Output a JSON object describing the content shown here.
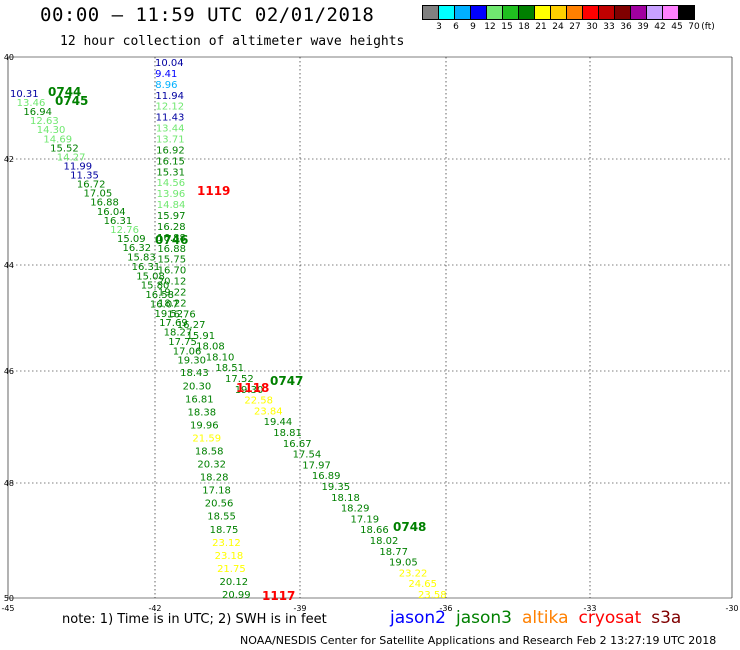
{
  "header": {
    "title": "00:00 – 11:59 UTC 02/01/2018",
    "subtitle": "12 hour collection of altimeter wave heights"
  },
  "legend": {
    "colors": [
      "#808080",
      "#00ffff",
      "#00b0ff",
      "#0000ff",
      "#70e870",
      "#20c020",
      "#008000",
      "#ffff00",
      "#ffd000",
      "#ff8000",
      "#ff0000",
      "#c00000",
      "#800000",
      "#a000a0",
      "#c8a0ff",
      "#ff80ff",
      "#000000"
    ],
    "labels": [
      "3",
      "6",
      "9",
      "12",
      "15",
      "18",
      "21",
      "24",
      "27",
      "30",
      "33",
      "36",
      "39",
      "42",
      "45",
      "70",
      "(ft)"
    ]
  },
  "axes": {
    "lat_labels": [
      "40",
      "42",
      "44",
      "46",
      "48",
      "50"
    ],
    "lon_labels": [
      "-45",
      "-42",
      "-39",
      "-36",
      "-33",
      "-30"
    ]
  },
  "tracks": [
    {
      "points": [
        {
          "v": "10.31",
          "c": "#0000a0"
        },
        {
          "v": "13.46",
          "c": "#70e870"
        },
        {
          "v": "16.94",
          "c": "#008000"
        },
        {
          "v": "12.63",
          "c": "#70e870"
        },
        {
          "v": "14.30",
          "c": "#70e870"
        },
        {
          "v": "14.69",
          "c": "#70e870"
        },
        {
          "v": "15.52",
          "c": "#008000"
        },
        {
          "v": "14.27",
          "c": "#70e870"
        },
        {
          "v": "11.99",
          "c": "#0000a0"
        },
        {
          "v": "11.35",
          "c": "#0000a0"
        },
        {
          "v": "16.72",
          "c": "#008000"
        },
        {
          "v": "17.05",
          "c": "#008000"
        },
        {
          "v": "16.88",
          "c": "#008000"
        },
        {
          "v": "16.04",
          "c": "#008000"
        },
        {
          "v": "16.31",
          "c": "#008000"
        },
        {
          "v": "12.76",
          "c": "#70e870"
        },
        {
          "v": "15.09",
          "c": "#008000"
        },
        {
          "v": "16.32",
          "c": "#008000"
        },
        {
          "v": "15.83",
          "c": "#008000"
        },
        {
          "v": "16.31",
          "c": "#008000"
        },
        {
          "v": "15.08",
          "c": "#008000"
        },
        {
          "v": "15.80",
          "c": "#008000"
        },
        {
          "v": "16.58",
          "c": "#008000"
        },
        {
          "v": "16.07",
          "c": "#008000"
        },
        {
          "v": "19.52",
          "c": "#008000"
        },
        {
          "v": "17.69",
          "c": "#008000"
        },
        {
          "v": "18.27",
          "c": "#008000"
        },
        {
          "v": "17.75",
          "c": "#008000"
        },
        {
          "v": "17.06",
          "c": "#008000"
        },
        {
          "v": "19.30",
          "c": "#008000"
        },
        {
          "v": "18.43",
          "c": "#008000"
        },
        {
          "v": "20.30",
          "c": "#008000"
        },
        {
          "v": "16.81",
          "c": "#008000"
        },
        {
          "v": "18.38",
          "c": "#008000"
        },
        {
          "v": "19.96",
          "c": "#008000"
        },
        {
          "v": "21.59",
          "c": "#ffff00"
        },
        {
          "v": "18.58",
          "c": "#008000"
        },
        {
          "v": "20.32",
          "c": "#008000"
        },
        {
          "v": "18.28",
          "c": "#008000"
        },
        {
          "v": "17.18",
          "c": "#008000"
        },
        {
          "v": "20.56",
          "c": "#008000"
        },
        {
          "v": "18.55",
          "c": "#008000"
        },
        {
          "v": "18.75",
          "c": "#008000"
        },
        {
          "v": "23.12",
          "c": "#ffff00"
        },
        {
          "v": "23.18",
          "c": "#ffff00"
        },
        {
          "v": "21.75",
          "c": "#ffff00"
        },
        {
          "v": "20.12",
          "c": "#008000"
        },
        {
          "v": "20.99",
          "c": "#008000"
        }
      ]
    },
    {
      "points": [
        {
          "v": "10.04",
          "c": "#0000a0"
        },
        {
          "v": "9.41",
          "c": "#0000ff"
        },
        {
          "v": "8.96",
          "c": "#00b0ff"
        },
        {
          "v": "11.94",
          "c": "#0000a0"
        },
        {
          "v": "12.12",
          "c": "#70e870"
        },
        {
          "v": "11.43",
          "c": "#0000a0"
        },
        {
          "v": "13.44",
          "c": "#70e870"
        },
        {
          "v": "13.71",
          "c": "#70e870"
        },
        {
          "v": "16.92",
          "c": "#008000"
        },
        {
          "v": "16.15",
          "c": "#008000"
        },
        {
          "v": "15.31",
          "c": "#008000"
        },
        {
          "v": "14.56",
          "c": "#70e870"
        },
        {
          "v": "13.96",
          "c": "#70e870"
        },
        {
          "v": "14.84",
          "c": "#70e870"
        },
        {
          "v": "15.97",
          "c": "#008000"
        },
        {
          "v": "16.28",
          "c": "#008000"
        },
        {
          "v": "16.88",
          "c": "#008000"
        },
        {
          "v": "16.88",
          "c": "#008000"
        },
        {
          "v": "15.75",
          "c": "#008000"
        },
        {
          "v": "16.70",
          "c": "#008000"
        },
        {
          "v": "20.12",
          "c": "#008000"
        },
        {
          "v": "19.22",
          "c": "#008000"
        },
        {
          "v": "18.22",
          "c": "#008000"
        },
        {
          "v": "16.76",
          "c": "#008000"
        },
        {
          "v": "16.27",
          "c": "#008000"
        },
        {
          "v": "15.91",
          "c": "#008000"
        },
        {
          "v": "18.08",
          "c": "#008000"
        },
        {
          "v": "18.10",
          "c": "#008000"
        },
        {
          "v": "18.51",
          "c": "#008000"
        },
        {
          "v": "17.52",
          "c": "#008000"
        },
        {
          "v": "19.30",
          "c": "#008000"
        },
        {
          "v": "22.58",
          "c": "#ffff00"
        },
        {
          "v": "23.84",
          "c": "#ffff00"
        },
        {
          "v": "19.44",
          "c": "#008000"
        },
        {
          "v": "18.81",
          "c": "#008000"
        },
        {
          "v": "16.67",
          "c": "#008000"
        },
        {
          "v": "17.54",
          "c": "#008000"
        },
        {
          "v": "17.97",
          "c": "#008000"
        },
        {
          "v": "16.89",
          "c": "#008000"
        },
        {
          "v": "19.35",
          "c": "#008000"
        },
        {
          "v": "18.18",
          "c": "#008000"
        },
        {
          "v": "18.29",
          "c": "#008000"
        },
        {
          "v": "17.19",
          "c": "#008000"
        },
        {
          "v": "18.66",
          "c": "#008000"
        },
        {
          "v": "18.02",
          "c": "#008000"
        },
        {
          "v": "18.77",
          "c": "#008000"
        },
        {
          "v": "19.05",
          "c": "#008000"
        },
        {
          "v": "23.22",
          "c": "#ffff00"
        },
        {
          "v": "24.65",
          "c": "#ffff00"
        },
        {
          "v": "23.58",
          "c": "#ffff00"
        }
      ]
    }
  ],
  "pass_labels": [
    {
      "text": "0744",
      "color": "#008000"
    },
    {
      "text": "0745",
      "color": "#008000"
    },
    {
      "text": "0746",
      "color": "#008000"
    },
    {
      "text": "1119",
      "color": "#ff0000"
    },
    {
      "text": "1118",
      "color": "#ff0000"
    },
    {
      "text": "0747",
      "color": "#008000"
    },
    {
      "text": "0748",
      "color": "#008000"
    },
    {
      "text": "1117",
      "color": "#ff0000"
    }
  ],
  "footer": {
    "note": "note: 1) Time is in UTC; 2) SWH is in feet",
    "credit": "NOAA/NESDIS Center for Satellite Applications and Research    Feb  2 13:27:19 UTC 2018",
    "satellites": [
      {
        "name": "jason2",
        "color": "#0000ff"
      },
      {
        "name": "jason3",
        "color": "#008000"
      },
      {
        "name": "altika",
        "color": "#ff8000"
      },
      {
        "name": "cryosat",
        "color": "#ff0000"
      },
      {
        "name": "s3a",
        "color": "#800000"
      }
    ]
  }
}
